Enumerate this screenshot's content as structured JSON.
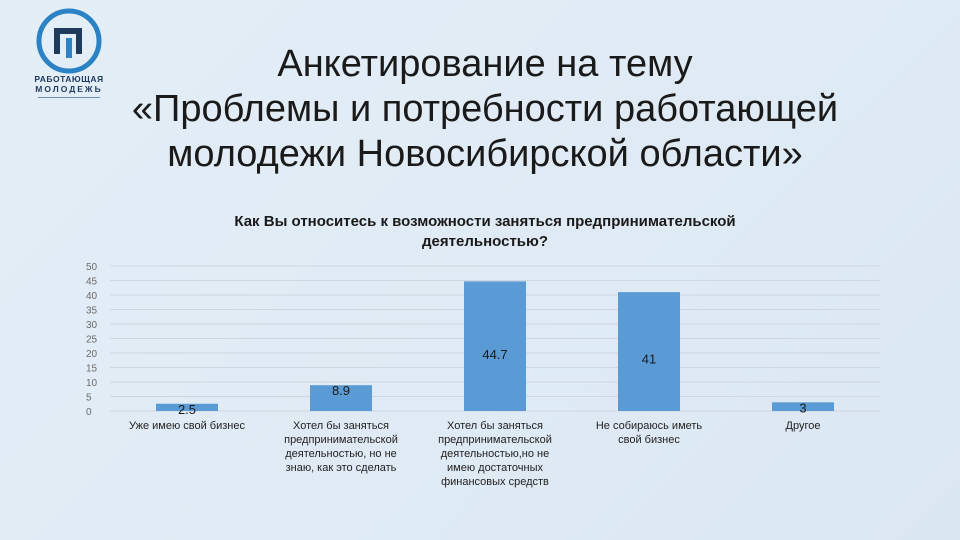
{
  "logo": {
    "line1": "РАБОТАЮЩАЯ",
    "line2": "МОЛОДЕЖЬ"
  },
  "page": {
    "title_lines": [
      "Анкетирование на тему",
      "«Проблемы и потребности работающей",
      "молодежи Новосибирской области»"
    ]
  },
  "colors": {
    "bar": "#5b9bd5",
    "gridline": "#d0d6de",
    "axis_text": "#6b6b6b"
  },
  "chart_data": {
    "type": "bar",
    "title": "Как Вы относитесь к возможности заняться предпринимательской деятельностью?",
    "title_lines": [
      "Как Вы относитесь к возможности заняться предпринимательской",
      "деятельностью?"
    ],
    "categories": [
      "Уже имею свой бизнес",
      "Хотел бы заняться предпринимательской деятельностью, но не знаю, как это сделать",
      "Хотел бы заняться предпринимательской деятельностью,но не имею достаточных финансовых средств",
      "Не собираюсь иметь свой бизнес",
      "Другое"
    ],
    "category_lines": [
      [
        "Уже имею свой бизнес"
      ],
      [
        "Хотел бы заняться",
        "предпринимательской",
        "деятельностью, но не",
        "знаю, как это сделать"
      ],
      [
        "Хотел бы заняться",
        "предпринимательской",
        "деятельностью,но не",
        "имею достаточных",
        "финансовых средств"
      ],
      [
        "Не собираюсь иметь",
        "свой бизнес"
      ],
      [
        "Другое"
      ]
    ],
    "values": [
      2.5,
      8.9,
      44.7,
      41,
      3
    ],
    "data_labels": [
      "2.5",
      "8.9",
      "44.7",
      "41",
      "3"
    ],
    "ylim": [
      0,
      50
    ],
    "yticks": [
      0,
      5,
      10,
      15,
      20,
      25,
      30,
      35,
      40,
      45,
      50
    ],
    "grid": true,
    "xlabel": "",
    "ylabel": ""
  }
}
